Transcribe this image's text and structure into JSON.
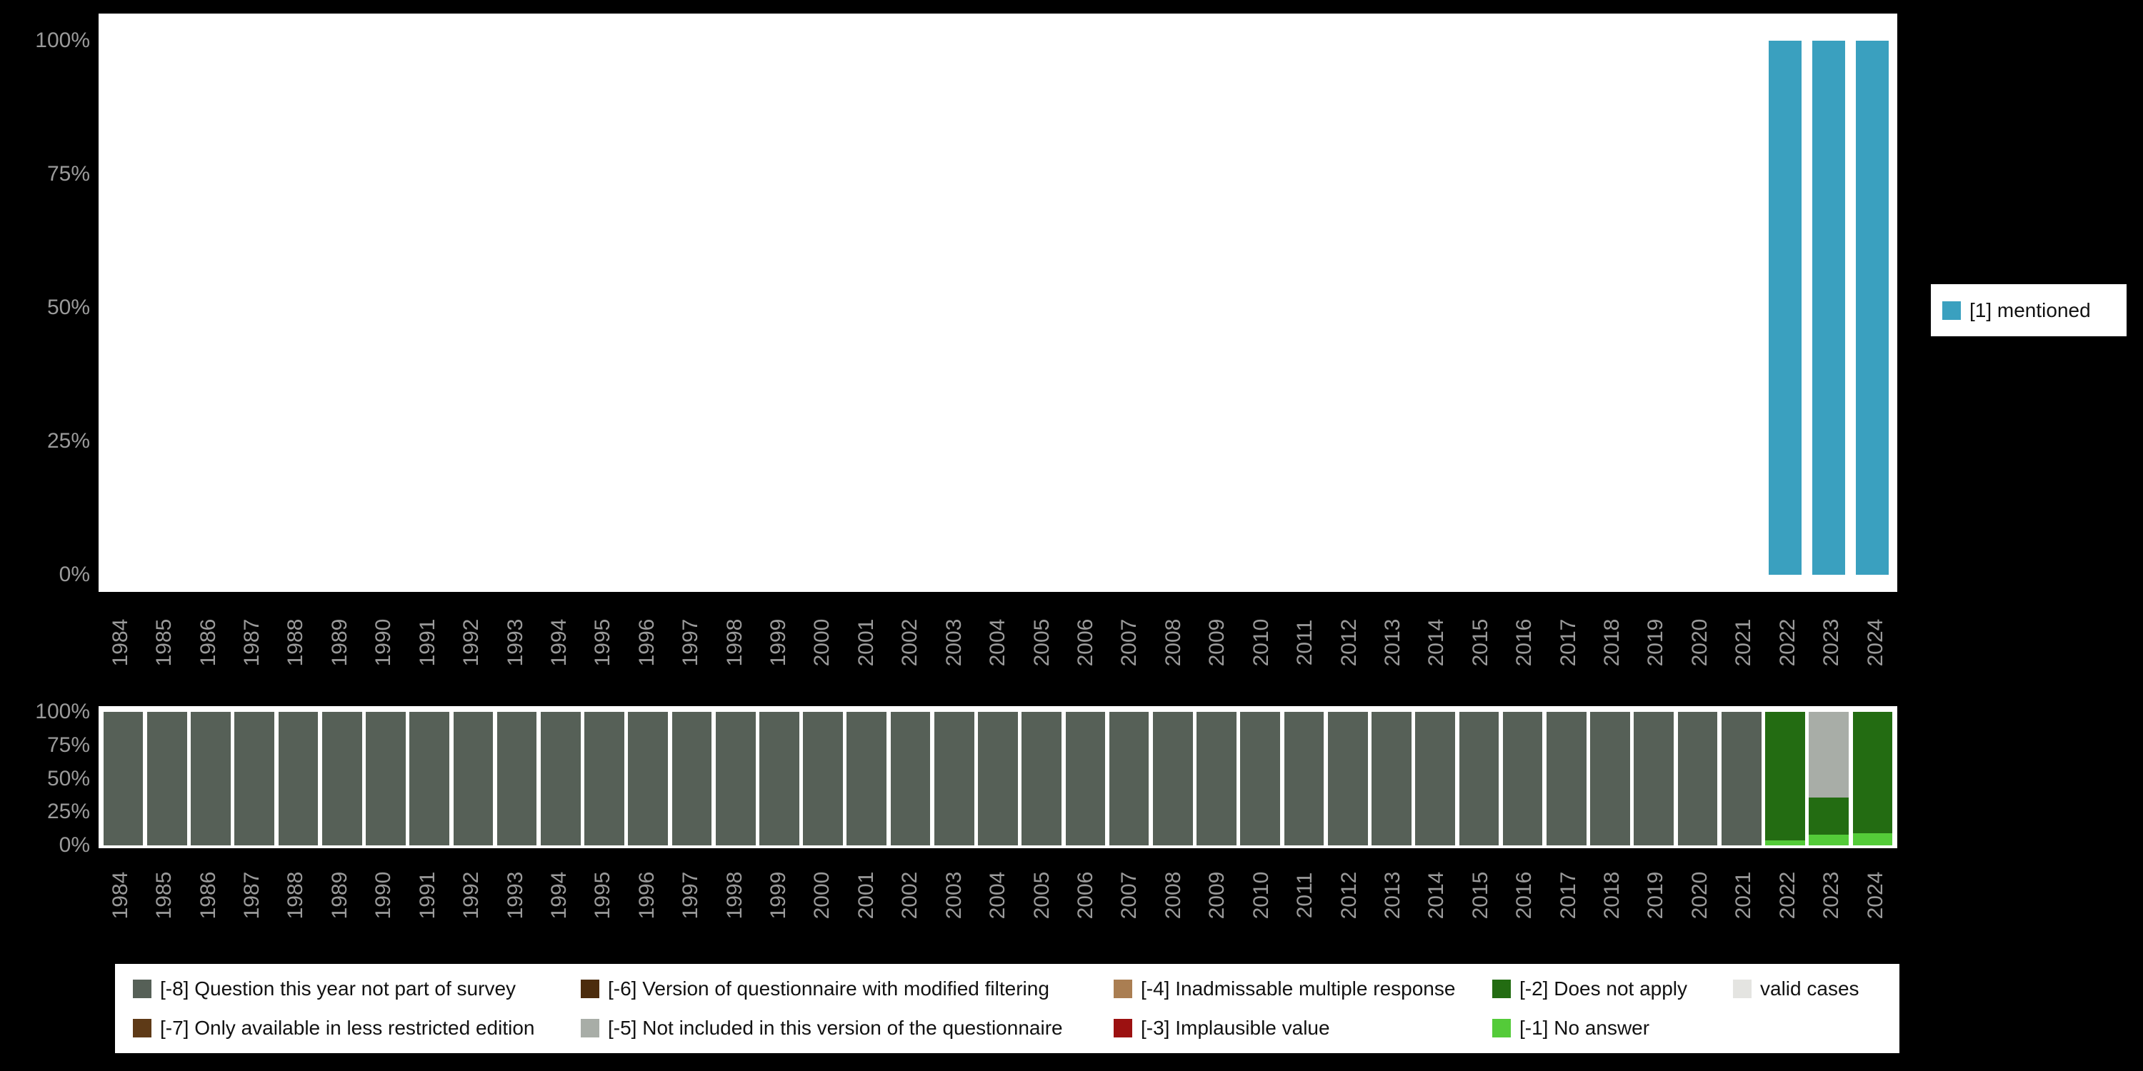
{
  "page": {
    "background_color": "#000000",
    "axis_text_color": "#9a9a9a"
  },
  "chart_data": [
    {
      "id": "frequencies-over-time",
      "type": "bar",
      "stacked": true,
      "grid": false,
      "legend_position": "right",
      "x_label_rotation": 90,
      "ylim": [
        0,
        100
      ],
      "y_ticks": [
        "100%",
        "75%",
        "50%",
        "25%",
        "0%"
      ],
      "categories": [
        1984,
        1985,
        1986,
        1987,
        1988,
        1989,
        1990,
        1991,
        1992,
        1993,
        1994,
        1995,
        1996,
        1997,
        1998,
        1999,
        2000,
        2001,
        2002,
        2003,
        2004,
        2005,
        2006,
        2007,
        2008,
        2009,
        2010,
        2011,
        2012,
        2013,
        2014,
        2015,
        2016,
        2017,
        2018,
        2019,
        2020,
        2021,
        2022,
        2023,
        2024
      ],
      "series": [
        {
          "name": "[1] mentioned",
          "color": "#3aa0bf",
          "values": [
            0,
            0,
            0,
            0,
            0,
            0,
            0,
            0,
            0,
            0,
            0,
            0,
            0,
            0,
            0,
            0,
            0,
            0,
            0,
            0,
            0,
            0,
            0,
            0,
            0,
            0,
            0,
            0,
            0,
            0,
            0,
            0,
            0,
            0,
            0,
            0,
            0,
            0,
            100,
            100,
            100
          ]
        }
      ]
    },
    {
      "id": "missing-values-over-time",
      "type": "bar",
      "stacked": true,
      "grid": false,
      "legend_position": "bottom",
      "x_label_rotation": 90,
      "ylim": [
        0,
        100
      ],
      "y_ticks": [
        "100%",
        "75%",
        "50%",
        "25%",
        "0%"
      ],
      "categories": [
        1984,
        1985,
        1986,
        1987,
        1988,
        1989,
        1990,
        1991,
        1992,
        1993,
        1994,
        1995,
        1996,
        1997,
        1998,
        1999,
        2000,
        2001,
        2002,
        2003,
        2004,
        2005,
        2006,
        2007,
        2008,
        2009,
        2010,
        2011,
        2012,
        2013,
        2014,
        2015,
        2016,
        2017,
        2018,
        2019,
        2020,
        2021,
        2022,
        2023,
        2024
      ],
      "series": [
        {
          "name": "[-1] No answer",
          "color": "#54cb39",
          "values": [
            0,
            0,
            0,
            0,
            0,
            0,
            0,
            0,
            0,
            0,
            0,
            0,
            0,
            0,
            0,
            0,
            0,
            0,
            0,
            0,
            0,
            0,
            0,
            0,
            0,
            0,
            0,
            0,
            0,
            0,
            0,
            0,
            0,
            0,
            0,
            0,
            0,
            0,
            4,
            8,
            9
          ]
        },
        {
          "name": "[-2] Does not apply",
          "color": "#236c12",
          "values": [
            0,
            0,
            0,
            0,
            0,
            0,
            0,
            0,
            0,
            0,
            0,
            0,
            0,
            0,
            0,
            0,
            0,
            0,
            0,
            0,
            0,
            0,
            0,
            0,
            0,
            0,
            0,
            0,
            0,
            0,
            0,
            0,
            0,
            0,
            0,
            0,
            0,
            0,
            96,
            28,
            91
          ]
        },
        {
          "name": "[-5] Not included in this version of the questionnaire",
          "color": "#a8ada7",
          "values": [
            0,
            0,
            0,
            0,
            0,
            0,
            0,
            0,
            0,
            0,
            0,
            0,
            0,
            0,
            0,
            0,
            0,
            0,
            0,
            0,
            0,
            0,
            0,
            0,
            0,
            0,
            0,
            0,
            0,
            0,
            0,
            0,
            0,
            0,
            0,
            0,
            0,
            0,
            0,
            64,
            0
          ]
        },
        {
          "name": "[-8] Question this year not part of survey",
          "color": "#566057",
          "values": [
            100,
            100,
            100,
            100,
            100,
            100,
            100,
            100,
            100,
            100,
            100,
            100,
            100,
            100,
            100,
            100,
            100,
            100,
            100,
            100,
            100,
            100,
            100,
            100,
            100,
            100,
            100,
            100,
            100,
            100,
            100,
            100,
            100,
            100,
            100,
            100,
            100,
            100,
            0,
            0,
            0
          ]
        }
      ]
    }
  ],
  "top_legend": {
    "items": [
      {
        "label": "[1] mentioned",
        "color": "#3aa0bf"
      }
    ]
  },
  "bottom_legend": {
    "items": [
      {
        "label": "[-8] Question this year not part of survey",
        "color": "#566057"
      },
      {
        "label": "[-6] Version of questionnaire with modified filtering",
        "color": "#4c2c0d"
      },
      {
        "label": "[-4] Inadmissable multiple response",
        "color": "#aa7e52"
      },
      {
        "label": "[-2] Does not apply",
        "color": "#236c12"
      },
      {
        "label": "valid cases",
        "color": "#e4e4e1"
      },
      {
        "label": "[-7] Only available in less restricted edition",
        "color": "#5e3a17"
      },
      {
        "label": "[-5] Not included in this version of the questionnaire",
        "color": "#a8ada7"
      },
      {
        "label": "[-3] Implausible value",
        "color": "#9c1111"
      },
      {
        "label": "[-1] No answer",
        "color": "#54cb39"
      }
    ]
  }
}
